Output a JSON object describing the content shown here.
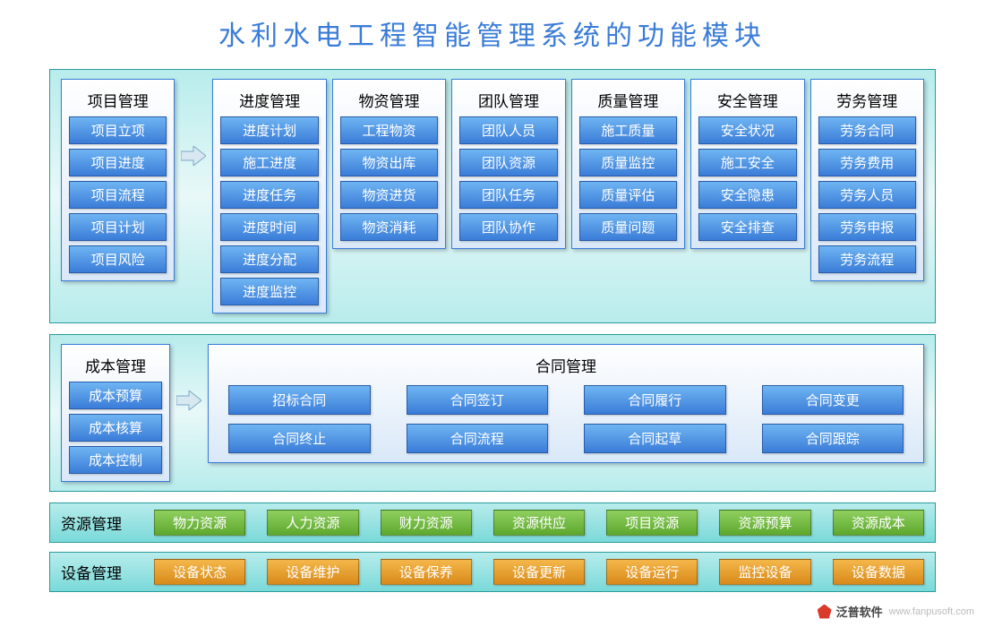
{
  "title": "水利水电工程智能管理系统的功能模块",
  "colors": {
    "title_color": "#3a7cd8",
    "panel_border": "#2a9b9b",
    "panel_bg_top": "#b8ecec",
    "panel_bg_bottom": "#e8f8f8",
    "module_bg_top": "#ffffff",
    "module_bg_bottom": "#d9e8f8",
    "module_border": "#3a7cd8",
    "item_bg_top": "#6fb5f2",
    "item_bg_bottom": "#3a7cd8",
    "item_text": "#ffffff",
    "chip_green_top": "#8fcf5f",
    "chip_green_bottom": "#5ea82e",
    "chip_orange_top": "#f5b74a",
    "chip_orange_bottom": "#d88a1a",
    "arrow_fill": "#d8e8f0",
    "arrow_stroke": "#7aa8c8"
  },
  "typography": {
    "title_fontsize": 30,
    "header_fontsize": 17,
    "item_fontsize": 15,
    "title_letter_spacing": 6
  },
  "row1_modules": [
    {
      "header": "项目管理",
      "items": [
        "项目立项",
        "项目进度",
        "项目流程",
        "项目计划",
        "项目风险"
      ]
    },
    {
      "header": "进度管理",
      "items": [
        "进度计划",
        "施工进度",
        "进度任务",
        "进度时间",
        "进度分配",
        "进度监控"
      ]
    },
    {
      "header": "物资管理",
      "items": [
        "工程物资",
        "物资出库",
        "物资进货",
        "物资消耗"
      ]
    },
    {
      "header": "团队管理",
      "items": [
        "团队人员",
        "团队资源",
        "团队任务",
        "团队协作"
      ]
    },
    {
      "header": "质量管理",
      "items": [
        "施工质量",
        "质量监控",
        "质量评估",
        "质量问题"
      ]
    },
    {
      "header": "安全管理",
      "items": [
        "安全状况",
        "施工安全",
        "安全隐患",
        "安全排查"
      ]
    },
    {
      "header": "劳务管理",
      "items": [
        "劳务合同",
        "劳务费用",
        "劳务人员",
        "劳务申报",
        "劳务流程"
      ]
    }
  ],
  "row1_arrow_after_index": 0,
  "row2": {
    "cost": {
      "header": "成本管理",
      "items": [
        "成本预算",
        "成本核算",
        "成本控制"
      ]
    },
    "contract": {
      "header": "合同管理",
      "items": [
        "招标合同",
        "合同签订",
        "合同履行",
        "合同变更",
        "合同终止",
        "合同流程",
        "合同起草",
        "合同跟踪"
      ]
    }
  },
  "strips": [
    {
      "label": "资源管理",
      "style": "green",
      "items": [
        "物力资源",
        "人力资源",
        "财力资源",
        "资源供应",
        "项目资源",
        "资源预算",
        "资源成本"
      ]
    },
    {
      "label": "设备管理",
      "style": "orange",
      "items": [
        "设备状态",
        "设备维护",
        "设备保养",
        "设备更新",
        "设备运行",
        "监控设备",
        "设备数据"
      ]
    }
  ],
  "watermark": {
    "name": "泛普软件",
    "url": "www.fanpusoft.com"
  }
}
